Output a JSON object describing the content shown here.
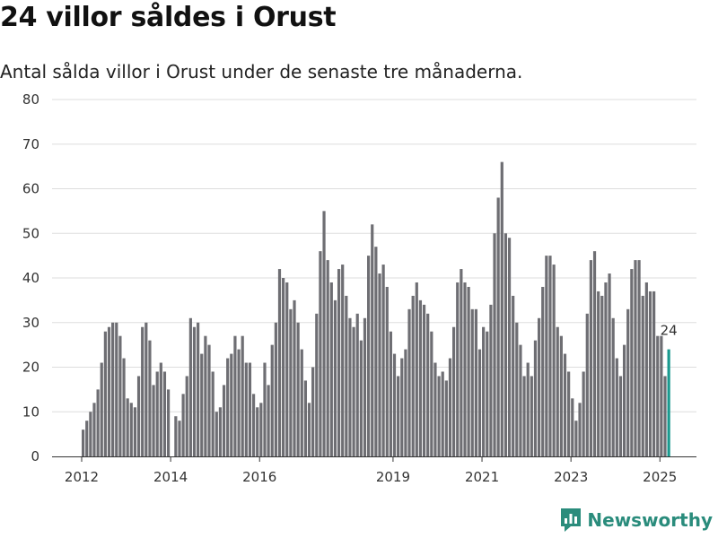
{
  "title": "24 villor såldes i Orust",
  "subtitle": "Antal sålda villor i Orust under de senaste tre månaderna.",
  "brand": "Newsworthy",
  "colors": {
    "bar": "#6e6e73",
    "highlight": "#1a9a8f",
    "grid": "#dddddd",
    "brand": "#2a8c7c"
  },
  "chart_data": {
    "type": "bar",
    "ylim": [
      0,
      80
    ],
    "yticks": [
      0,
      10,
      20,
      30,
      40,
      50,
      60,
      70,
      80
    ],
    "xticks": [
      "2012",
      "2014",
      "2016",
      "2019",
      "2021",
      "2023",
      "2025"
    ],
    "grid": true,
    "start": "2012-01",
    "highlight_label": "24",
    "values": [
      6,
      8,
      10,
      12,
      15,
      21,
      28,
      29,
      30,
      30,
      27,
      22,
      13,
      12,
      11,
      18,
      29,
      30,
      26,
      16,
      19,
      21,
      19,
      15,
      0,
      9,
      8,
      14,
      18,
      31,
      29,
      30,
      23,
      27,
      25,
      19,
      10,
      11,
      16,
      22,
      23,
      27,
      24,
      27,
      21,
      21,
      14,
      11,
      12,
      21,
      16,
      25,
      30,
      42,
      40,
      39,
      33,
      35,
      30,
      24,
      17,
      12,
      20,
      32,
      46,
      55,
      44,
      39,
      35,
      42,
      43,
      36,
      31,
      29,
      32,
      26,
      31,
      45,
      52,
      47,
      41,
      43,
      38,
      28,
      23,
      18,
      22,
      24,
      33,
      36,
      39,
      35,
      34,
      32,
      28,
      21,
      18,
      19,
      17,
      22,
      29,
      39,
      42,
      39,
      38,
      33,
      33,
      24,
      29,
      28,
      34,
      50,
      58,
      66,
      50,
      49,
      36,
      30,
      25,
      18,
      21,
      18,
      26,
      31,
      38,
      45,
      45,
      43,
      29,
      27,
      23,
      19,
      13,
      8,
      12,
      19,
      32,
      44,
      46,
      37,
      36,
      39,
      41,
      31,
      22,
      18,
      25,
      33,
      42,
      44,
      44,
      36,
      39,
      37,
      37,
      27,
      27,
      18,
      24
    ]
  }
}
